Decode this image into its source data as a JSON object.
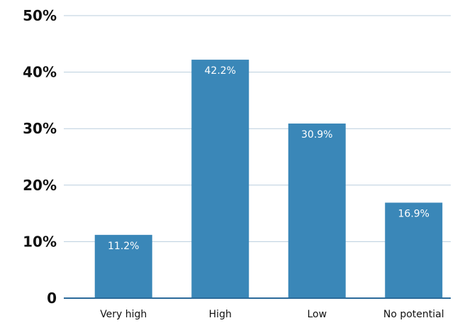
{
  "chart_data": {
    "type": "bar",
    "categories": [
      "Very high",
      "High",
      "Low",
      "No potential"
    ],
    "values": [
      11.2,
      42.2,
      30.9,
      16.9
    ],
    "data_labels": [
      "11.2%",
      "42.2%",
      "30.9%",
      "16.9%"
    ],
    "yticks": [
      0,
      10,
      20,
      30,
      40,
      50
    ],
    "ytick_labels": [
      "0",
      "10%",
      "20%",
      "30%",
      "40%",
      "50%"
    ],
    "ylim": [
      0,
      50
    ],
    "title": "",
    "xlabel": "",
    "ylabel": "",
    "grid": true,
    "legend": "none",
    "colors": {
      "bar": "#3a87b8",
      "grid": "#b9cedd",
      "baseline": "#2b6a9a",
      "label": "#ffffff",
      "text": "#111111"
    }
  }
}
